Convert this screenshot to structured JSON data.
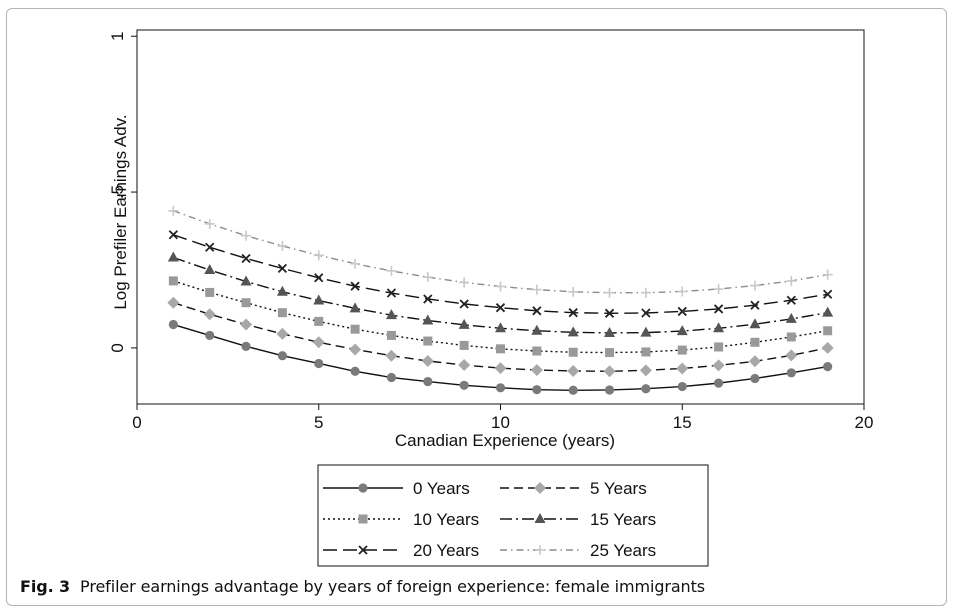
{
  "caption": {
    "label": "Fig. 3",
    "text": "Prefiler earnings advantage by years of foreign experience: female immigrants"
  },
  "chart_data": {
    "type": "line",
    "xlabel": "Canadian Experience (years)",
    "ylabel": "Log Prefiler Earnings Adv.",
    "xlim": [
      0,
      20
    ],
    "ylim": [
      -0.18,
      1.02
    ],
    "xticks": [
      0,
      5,
      10,
      15,
      20
    ],
    "xtick_labels": [
      "0",
      "5",
      "10",
      "15",
      "20"
    ],
    "yticks": [
      0,
      0.5,
      1
    ],
    "ytick_labels": [
      "0",
      ".5",
      "1"
    ],
    "grid": false,
    "legend_position": "bottom",
    "x": [
      1,
      2,
      3,
      4,
      5,
      6,
      7,
      8,
      9,
      10,
      11,
      12,
      13,
      14,
      15,
      16,
      17,
      18,
      19
    ],
    "series": [
      {
        "name": "0 Years",
        "marker": "circle",
        "dash": "solid",
        "color": "#7a7a7a",
        "values": [
          0.075,
          0.04,
          0.005,
          -0.025,
          -0.05,
          -0.075,
          -0.095,
          -0.108,
          -0.12,
          -0.128,
          -0.134,
          -0.136,
          -0.135,
          -0.131,
          -0.124,
          -0.113,
          -0.098,
          -0.08,
          -0.06
        ]
      },
      {
        "name": "5 Years",
        "marker": "diamond",
        "dash": "long-dash",
        "color": "#a8a8a8",
        "values": [
          0.145,
          0.108,
          0.075,
          0.045,
          0.018,
          -0.005,
          -0.025,
          -0.042,
          -0.055,
          -0.065,
          -0.071,
          -0.074,
          -0.075,
          -0.072,
          -0.066,
          -0.056,
          -0.043,
          -0.024,
          0.0
        ]
      },
      {
        "name": "10 Years",
        "marker": "square",
        "dash": "dotted",
        "color": "#999999",
        "values": [
          0.215,
          0.178,
          0.145,
          0.113,
          0.085,
          0.06,
          0.04,
          0.022,
          0.008,
          -0.003,
          -0.01,
          -0.014,
          -0.015,
          -0.013,
          -0.007,
          0.003,
          0.018,
          0.035,
          0.055
        ]
      },
      {
        "name": "15 Years",
        "marker": "triangle",
        "dash": "dash-dot",
        "color": "#555555",
        "values": [
          0.29,
          0.25,
          0.213,
          0.18,
          0.152,
          0.127,
          0.105,
          0.088,
          0.074,
          0.063,
          0.055,
          0.05,
          0.048,
          0.049,
          0.054,
          0.063,
          0.076,
          0.093,
          0.113
        ]
      },
      {
        "name": "20 Years",
        "marker": "x",
        "dash": "long-dash-gap",
        "color": "#222222",
        "values": [
          0.363,
          0.323,
          0.287,
          0.255,
          0.225,
          0.198,
          0.176,
          0.157,
          0.141,
          0.129,
          0.119,
          0.113,
          0.111,
          0.112,
          0.117,
          0.125,
          0.137,
          0.153,
          0.172
        ]
      },
      {
        "name": "25 Years",
        "marker": "plus",
        "dash": "dash-dot-light",
        "color": "#c8c8c8",
        "values": [
          0.44,
          0.398,
          0.36,
          0.327,
          0.297,
          0.27,
          0.247,
          0.227,
          0.21,
          0.197,
          0.187,
          0.18,
          0.177,
          0.177,
          0.181,
          0.189,
          0.2,
          0.215,
          0.235
        ]
      }
    ]
  }
}
